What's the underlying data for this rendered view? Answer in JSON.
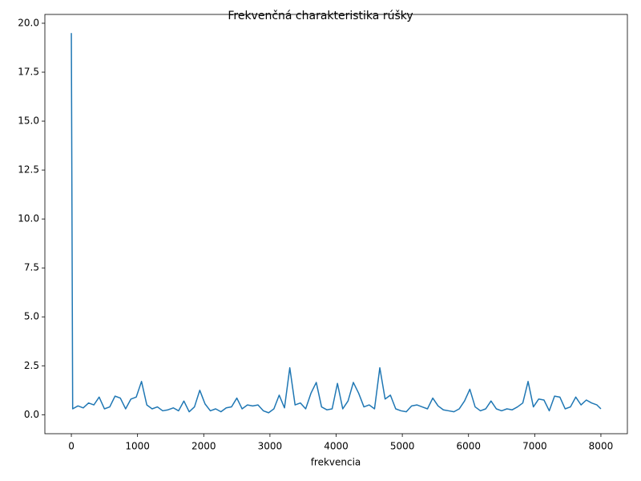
{
  "chart_data": {
    "type": "line",
    "title": "Frekvenčná charakteristika rúšky",
    "x_label": "frekvencia",
    "x": [
      0,
      20,
      100,
      180,
      260,
      340,
      420,
      500,
      580,
      660,
      740,
      820,
      900,
      980,
      1060,
      1140,
      1220,
      1300,
      1380,
      1460,
      1540,
      1620,
      1700,
      1780,
      1860,
      1940,
      2020,
      2100,
      2180,
      2260,
      2340,
      2420,
      2500,
      2580,
      2660,
      2740,
      2820,
      2900,
      2980,
      3060,
      3140,
      3220,
      3300,
      3380,
      3460,
      3540,
      3620,
      3700,
      3780,
      3860,
      3940,
      4020,
      4100,
      4180,
      4260,
      4340,
      4420,
      4500,
      4580,
      4660,
      4740,
      4820,
      4900,
      4980,
      5060,
      5140,
      5220,
      5300,
      5380,
      5460,
      5540,
      5620,
      5700,
      5780,
      5860,
      5940,
      6020,
      6100,
      6180,
      6260,
      6340,
      6420,
      6500,
      6580,
      6660,
      6740,
      6820,
      6900,
      6980,
      7060,
      7140,
      7220,
      7300,
      7380,
      7460,
      7540,
      7620,
      7700,
      7780,
      7860,
      7940,
      8000
    ],
    "series": [
      {
        "color": "#1f77b4",
        "values": [
          19.5,
          0.3,
          0.45,
          0.35,
          0.6,
          0.5,
          0.9,
          0.3,
          0.4,
          0.95,
          0.85,
          0.3,
          0.8,
          0.9,
          1.7,
          0.5,
          0.3,
          0.4,
          0.2,
          0.25,
          0.35,
          0.2,
          0.7,
          0.15,
          0.4,
          1.25,
          0.55,
          0.2,
          0.3,
          0.15,
          0.35,
          0.4,
          0.85,
          0.3,
          0.5,
          0.45,
          0.5,
          0.2,
          0.1,
          0.3,
          1.0,
          0.35,
          2.4,
          0.5,
          0.6,
          0.3,
          1.1,
          1.65,
          0.4,
          0.25,
          0.3,
          1.6,
          0.3,
          0.7,
          1.65,
          1.1,
          0.4,
          0.5,
          0.3,
          2.4,
          0.8,
          1.0,
          0.3,
          0.2,
          0.15,
          0.45,
          0.5,
          0.4,
          0.3,
          0.85,
          0.45,
          0.25,
          0.2,
          0.15,
          0.3,
          0.7,
          1.3,
          0.4,
          0.2,
          0.3,
          0.7,
          0.3,
          0.2,
          0.3,
          0.25,
          0.4,
          0.6,
          1.7,
          0.4,
          0.8,
          0.75,
          0.2,
          0.95,
          0.9,
          0.3,
          0.4,
          0.9,
          0.5,
          0.75,
          0.6,
          0.5,
          0.3
        ]
      }
    ],
    "xlim": [
      -400,
      8400
    ],
    "ylim": [
      -0.97,
      20.45
    ],
    "xticks": [
      0,
      1000,
      2000,
      3000,
      4000,
      5000,
      6000,
      7000,
      8000
    ],
    "yticks": [
      {
        "value": 0,
        "label": "0.0"
      },
      {
        "value": 2.5,
        "label": "2.5"
      },
      {
        "value": 5,
        "label": "5.0"
      },
      {
        "value": 7.5,
        "label": "7.5"
      },
      {
        "value": 10,
        "label": "10.0"
      },
      {
        "value": 12.5,
        "label": "12.5"
      },
      {
        "value": 15,
        "label": "15.0"
      },
      {
        "value": 17.5,
        "label": "17.5"
      },
      {
        "value": 20,
        "label": "20.0"
      }
    ]
  }
}
